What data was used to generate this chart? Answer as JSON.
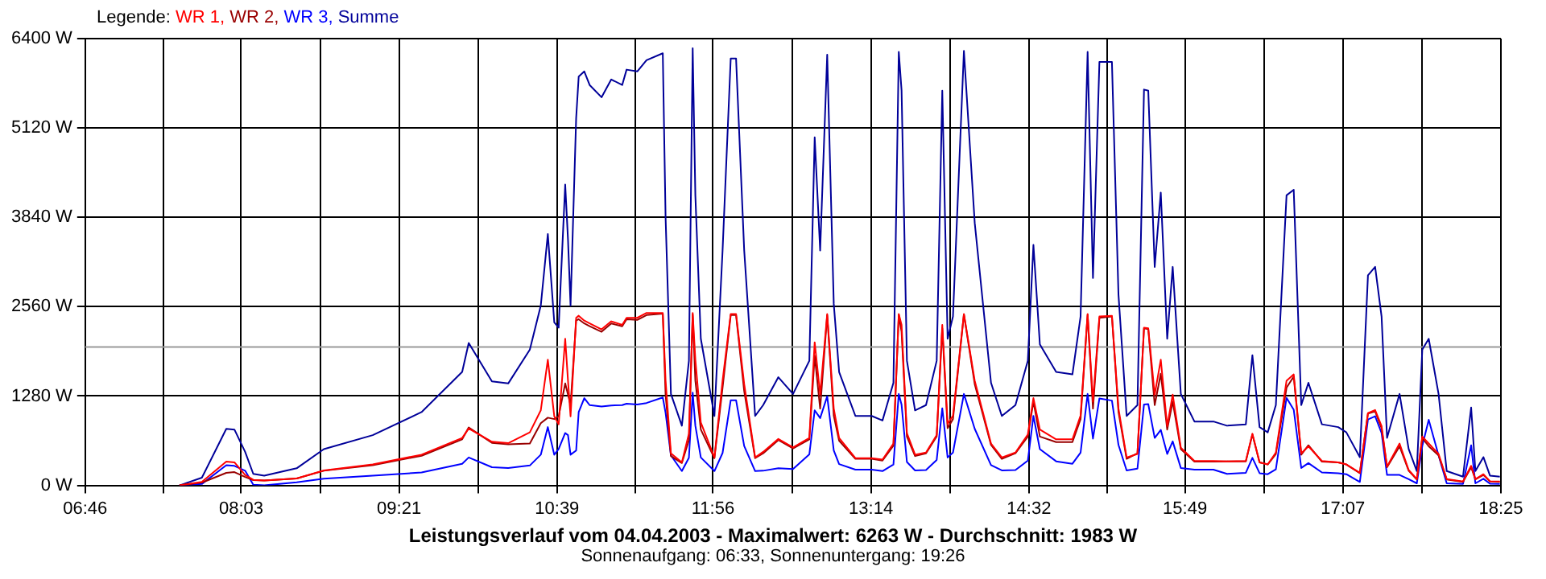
{
  "chart_data": {
    "type": "line",
    "title": "Leistungsverlauf vom 04.04.2003 - Maximalwert: 6263 W - Durchschnitt: 1983 W",
    "subtitle": "Sonnenaufgang: 06:33, Sonnenuntergang: 19:26",
    "legend_title": "Legende:",
    "legend": "top left",
    "grid": true,
    "xlim": [
      6.767,
      18.417
    ],
    "xticks": [
      {
        "value": 6.767,
        "label": "06:46"
      },
      {
        "value": 7.408,
        "label": null
      },
      {
        "value": 8.05,
        "label": "08:03"
      },
      {
        "value": 8.7,
        "label": null
      },
      {
        "value": 9.35,
        "label": "09:21"
      },
      {
        "value": 10,
        "label": null
      },
      {
        "value": 10.65,
        "label": "10:39"
      },
      {
        "value": 11.292,
        "label": null
      },
      {
        "value": 11.933,
        "label": "11:56"
      },
      {
        "value": 12.583,
        "label": null
      },
      {
        "value": 13.233,
        "label": "13:14"
      },
      {
        "value": 13.883,
        "label": null
      },
      {
        "value": 14.533,
        "label": "14:32"
      },
      {
        "value": 15.175,
        "label": null
      },
      {
        "value": 15.817,
        "label": "15:49"
      },
      {
        "value": 16.467,
        "label": null
      },
      {
        "value": 17.117,
        "label": "17:07"
      },
      {
        "value": 17.767,
        "label": null
      },
      {
        "value": 18.417,
        "label": "18:25"
      }
    ],
    "ylim": [
      0,
      6400
    ],
    "yticks": [
      {
        "value": 0,
        "label": "0 W"
      },
      {
        "value": 1280,
        "label": "1280 W"
      },
      {
        "value": 2560,
        "label": "2560 W"
      },
      {
        "value": 3840,
        "label": "3840 W"
      },
      {
        "value": 5120,
        "label": "5120 W"
      },
      {
        "value": 6400,
        "label": "6400 W"
      }
    ],
    "ref_lines": [
      {
        "axis": "y",
        "value": 1983,
        "color": "#999999"
      }
    ],
    "x": [
      7.543,
      7.727,
      7.928,
      7.995,
      8.083,
      8.15,
      8.24,
      8.507,
      8.731,
      9.133,
      9.535,
      9.869,
      9.923,
      10.114,
      10.248,
      10.426,
      10.516,
      10.574,
      10.627,
      10.663,
      10.717,
      10.74,
      10.761,
      10.807,
      10.828,
      10.874,
      10.918,
      11.016,
      11.096,
      11.186,
      11.222,
      11.31,
      11.386,
      11.52,
      11.543,
      11.587,
      11.677,
      11.735,
      11.766,
      11.788,
      11.833,
      11.945,
      12.012,
      12.079,
      12.123,
      12.19,
      12.28,
      12.346,
      12.471,
      12.592,
      12.726,
      12.77,
      12.815,
      12.873,
      12.927,
      12.971,
      13.105,
      13.239,
      13.328,
      13.418,
      13.462,
      13.485,
      13.529,
      13.596,
      13.686,
      13.774,
      13.82,
      13.864,
      13.908,
      13.998,
      14.087,
      14.221,
      14.31,
      14.422,
      14.524,
      14.57,
      14.623,
      14.757,
      14.891,
      14.958,
      15.016,
      15.06,
      15.113,
      15.216,
      15.27,
      15.337,
      15.426,
      15.48,
      15.515,
      15.568,
      15.618,
      15.671,
      15.716,
      15.783,
      15.895,
      16.051,
      16.163,
      16.318,
      16.372,
      16.431,
      16.498,
      16.565,
      16.653,
      16.712,
      16.774,
      16.833,
      16.944,
      17.078,
      17.145,
      17.256,
      17.323,
      17.382,
      17.435,
      17.48,
      17.583,
      17.658,
      17.725,
      17.77,
      17.823,
      17.904,
      17.971,
      18.105,
      18.172,
      18.207,
      18.273,
      18.327,
      18.408
    ],
    "series": [
      {
        "name": "WR 1,",
        "color": "#ff0000",
        "values": [
          0,
          50,
          340,
          330,
          150,
          80,
          70,
          100,
          215,
          300,
          440,
          680,
          815,
          625,
          605,
          760,
          1075,
          1800,
          990,
          875,
          2100,
          1500,
          990,
          2400,
          2430,
          2360,
          2320,
          2235,
          2350,
          2300,
          2400,
          2400,
          2470,
          2470,
          1500,
          460,
          330,
          740,
          2470,
          1800,
          900,
          400,
          1500,
          2455,
          2455,
          1450,
          400,
          480,
          665,
          545,
          680,
          2050,
          1300,
          2455,
          1100,
          680,
          390,
          390,
          370,
          600,
          2455,
          2300,
          750,
          440,
          470,
          720,
          2300,
          880,
          1000,
          2455,
          1500,
          600,
          400,
          470,
          730,
          1250,
          800,
          660,
          660,
          1000,
          2455,
          1200,
          2420,
          2430,
          1100,
          400,
          450,
          2260,
          2250,
          1300,
          1800,
          850,
          1300,
          540,
          350,
          350,
          345,
          350,
          740,
          330,
          300,
          470,
          1500,
          1590,
          460,
          560,
          350,
          330,
          300,
          180,
          1035,
          1080,
          850,
          270,
          600,
          220,
          90,
          700,
          600,
          450,
          90,
          55,
          280,
          90,
          160,
          60,
          55
        ]
      },
      {
        "name": "WR 2,",
        "color": "#990000",
        "values": [
          0,
          40,
          180,
          190,
          120,
          75,
          70,
          100,
          210,
          290,
          425,
          660,
          830,
          610,
          590,
          600,
          890,
          970,
          950,
          990,
          1460,
          1300,
          1150,
          2360,
          2380,
          2320,
          2280,
          2200,
          2320,
          2280,
          2380,
          2370,
          2440,
          2460,
          1300,
          420,
          320,
          650,
          2450,
          1500,
          800,
          390,
          1400,
          2440,
          2440,
          1350,
          390,
          460,
          650,
          530,
          660,
          1860,
          1100,
          2440,
          1000,
          640,
          380,
          380,
          355,
          570,
          2445,
          2200,
          700,
          420,
          460,
          700,
          2250,
          820,
          950,
          2450,
          1450,
          580,
          380,
          460,
          700,
          1200,
          700,
          620,
          620,
          950,
          2445,
          1100,
          2400,
          2420,
          1050,
          380,
          460,
          2250,
          2240,
          1150,
          1600,
          800,
          1200,
          520,
          340,
          340,
          345,
          345,
          730,
          330,
          300,
          450,
          1400,
          1560,
          440,
          575,
          340,
          330,
          300,
          175,
          1030,
          1060,
          820,
          260,
          560,
          210,
          85,
          680,
          560,
          430,
          85,
          50,
          260,
          85,
          150,
          55,
          50
        ]
      },
      {
        "name": "WR 3,",
        "color": "#0000ff",
        "values": [
          0,
          20,
          290,
          280,
          210,
          10,
          0,
          45,
          95,
          140,
          185,
          310,
          400,
          260,
          250,
          285,
          440,
          835,
          440,
          520,
          750,
          720,
          440,
          500,
          1050,
          1250,
          1150,
          1130,
          1145,
          1150,
          1170,
          1160,
          1180,
          1260,
          1040,
          430,
          205,
          395,
          1330,
          855,
          400,
          205,
          465,
          1220,
          1220,
          565,
          205,
          210,
          245,
          235,
          445,
          1075,
          965,
          1275,
          500,
          305,
          225,
          225,
          205,
          300,
          1310,
          1155,
          335,
          215,
          220,
          365,
          1105,
          400,
          470,
          1310,
          810,
          290,
          215,
          220,
          355,
          995,
          520,
          345,
          310,
          470,
          1310,
          670,
          1245,
          1215,
          580,
          215,
          240,
          1160,
          1165,
          680,
          795,
          450,
          630,
          250,
          225,
          225,
          165,
          180,
          395,
          175,
          160,
          230,
          1255,
          1085,
          250,
          320,
          185,
          175,
          160,
          50,
          945,
          990,
          750,
          150,
          150,
          90,
          30,
          565,
          940,
          430,
          30,
          20,
          575,
          30,
          95,
          25,
          20
        ]
      },
      {
        "name": "Summe",
        "color": "#000099",
        "values": [
          0,
          110,
          810,
          800,
          480,
          165,
          140,
          245,
          520,
          720,
          1050,
          1625,
          2040,
          1490,
          1460,
          1945,
          2575,
          3600,
          2335,
          2260,
          4310,
          3520,
          2575,
          5260,
          5855,
          5930,
          5735,
          5560,
          5815,
          5735,
          5955,
          5930,
          6090,
          6190,
          3840,
          1310,
          855,
          1785,
          6263,
          4155,
          2100,
          995,
          3365,
          6115,
          6115,
          3365,
          995,
          1150,
          1550,
          1310,
          1785,
          4985,
          3365,
          6170,
          2600,
          1625,
          995,
          995,
          930,
          1470,
          6210,
          5655,
          1785,
          1075,
          1150,
          1785,
          5655,
          2100,
          2420,
          6225,
          3760,
          1470,
          995,
          1150,
          1785,
          3445,
          2020,
          1625,
          1590,
          2420,
          6210,
          2970,
          6065,
          6065,
          2730,
          995,
          1150,
          5670,
          5655,
          3130,
          4195,
          2100,
          3130,
          1310,
          915,
          915,
          855,
          875,
          1865,
          835,
          760,
          1150,
          4155,
          4235,
          1150,
          1470,
          875,
          835,
          760,
          405,
          3010,
          3130,
          2420,
          680,
          1310,
          520,
          205,
          1945,
          2100,
          1310,
          205,
          125,
          1115,
          205,
          405,
          140,
          125
        ]
      }
    ]
  }
}
